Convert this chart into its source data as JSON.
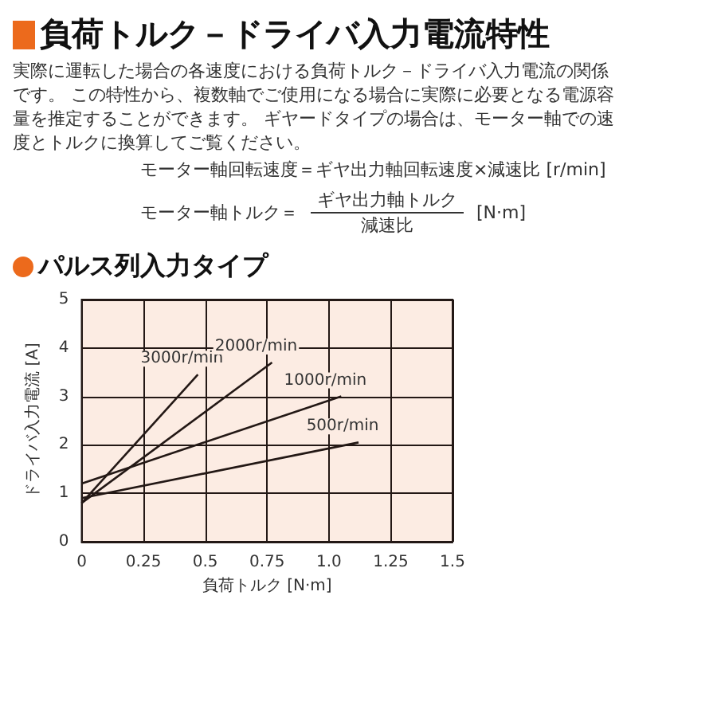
{
  "chart_data": {
    "type": "line",
    "title": "負荷トルク－ドライバ入力電流特性",
    "subtitle": "パルス列入力タイプ",
    "annotations": [
      "実際に運転した場合の各速度における負荷トルク－ドライバ入力電流の関係です。 この特性から、複数軸でご使用になる場合に実際に必要となる電源容量を推定することができます。 ギヤードタイプの場合は、モーター軸での速度とトルクに換算してご覧ください。",
      "モーター軸回転速度＝ギヤ出力軸回転速度×減速比 [r/min]",
      "モーター軸トルク＝",
      "ギヤ出力軸トルク",
      "減速比",
      "[N·m]"
    ],
    "xlabel": "負荷トルク [N·m]",
    "ylabel": "ドライバ入力電流 [A]",
    "series": [
      {
        "name": "3000r/min",
        "color": "#231815",
        "x": [
          0,
          0.47
        ],
        "values": [
          0.8,
          3.45
        ]
      },
      {
        "name": "2000r/min",
        "color": "#231815",
        "x": [
          0,
          0.77
        ],
        "values": [
          0.8,
          3.7
        ]
      },
      {
        "name": "1000r/min",
        "color": "#231815",
        "x": [
          0,
          1.05
        ],
        "values": [
          1.2,
          3.0
        ]
      },
      {
        "name": "500r/min",
        "color": "#231815",
        "x": [
          0,
          1.12
        ],
        "values": [
          0.9,
          2.05
        ]
      }
    ],
    "xlim": [
      0,
      1.5
    ],
    "xticks": [
      0,
      0.25,
      0.5,
      0.75,
      {
        "value": 1,
        "label": "1.0"
      },
      1.25,
      1.5
    ],
    "ylim": [
      0,
      5
    ],
    "yticks": [
      0,
      1,
      2,
      3,
      4,
      5
    ],
    "grid": true,
    "legend": false,
    "marker": "none",
    "line_style": "solid"
  }
}
